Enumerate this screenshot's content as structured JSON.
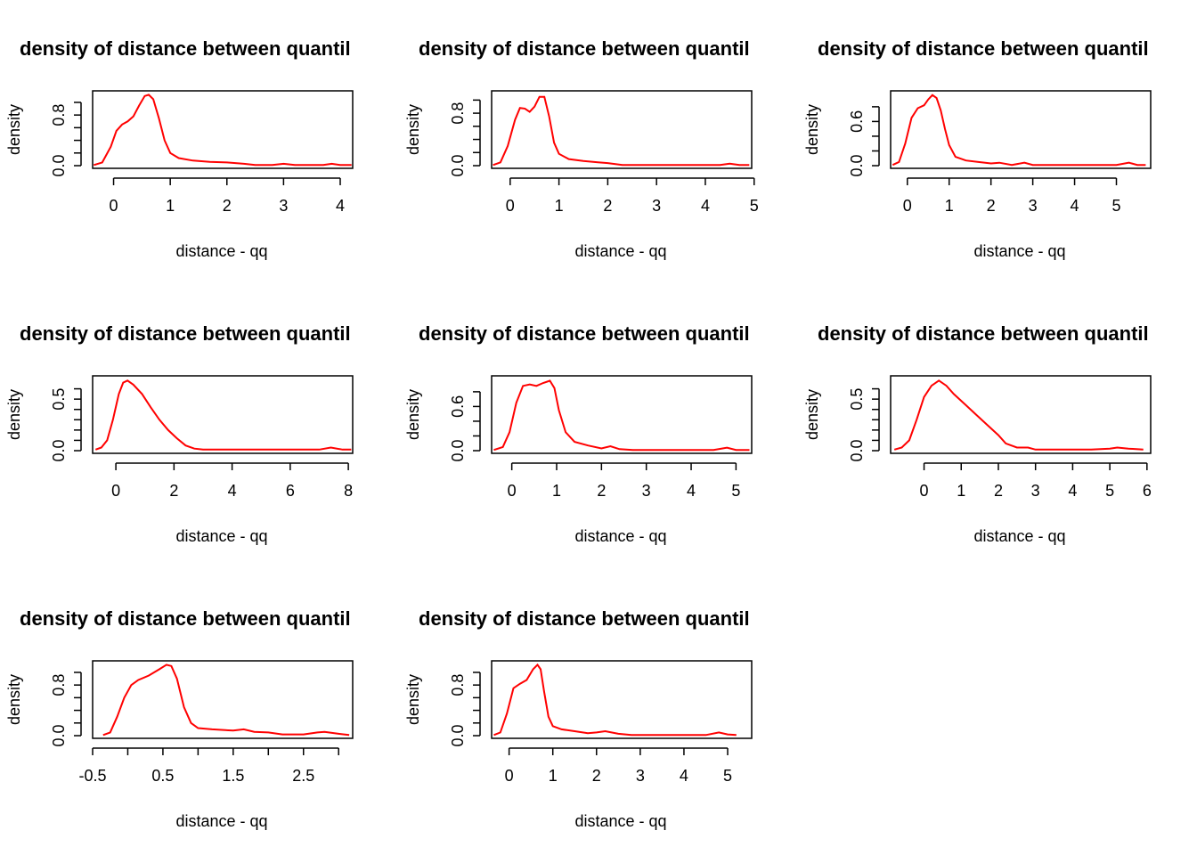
{
  "colors": {
    "curve": "#ff0000"
  },
  "chart_data": [
    {
      "type": "line",
      "title": "density of distance between quantil",
      "xlabel": "distance - qq",
      "ylabel": "density",
      "xlim": [
        -0.37,
        4.22
      ],
      "ylim": [
        0,
        1.14
      ],
      "xticks": [
        0,
        1,
        2,
        3,
        4
      ],
      "xtick_labels": [
        "0",
        "1",
        "2",
        "3",
        "4"
      ],
      "yticks": [
        0.0,
        0.2,
        0.4,
        0.6,
        0.8,
        1.0
      ],
      "ytick_labels": [
        "0.0",
        "",
        "",
        "",
        "0.8",
        ""
      ],
      "series": [
        {
          "x": [
            -0.35,
            -0.2,
            -0.05,
            0.05,
            0.15,
            0.25,
            0.35,
            0.45,
            0.55,
            0.62,
            0.7,
            0.8,
            0.9,
            1.0,
            1.15,
            1.4,
            1.7,
            2.0,
            2.3,
            2.5,
            2.8,
            3.0,
            3.2,
            3.5,
            3.7,
            3.85,
            4.0,
            4.2
          ],
          "y": [
            0.01,
            0.05,
            0.3,
            0.55,
            0.65,
            0.7,
            0.78,
            0.95,
            1.1,
            1.12,
            1.05,
            0.75,
            0.4,
            0.2,
            0.12,
            0.08,
            0.06,
            0.05,
            0.03,
            0.01,
            0.01,
            0.03,
            0.01,
            0.01,
            0.01,
            0.03,
            0.01,
            0.01
          ]
        }
      ]
    },
    {
      "type": "line",
      "title": "density of distance between quantil",
      "xlabel": "distance - qq",
      "ylabel": "density",
      "xlim": [
        -0.38,
        4.95
      ],
      "ylim": [
        0,
        1.1
      ],
      "xticks": [
        0,
        1,
        2,
        3,
        4,
        5
      ],
      "xtick_labels": [
        "0",
        "1",
        "2",
        "3",
        "4",
        "5"
      ],
      "yticks": [
        0.0,
        0.2,
        0.4,
        0.6,
        0.8,
        1.0
      ],
      "ytick_labels": [
        "0.0",
        "",
        "",
        "",
        "0.8",
        ""
      ],
      "series": [
        {
          "x": [
            -0.35,
            -0.2,
            -0.05,
            0.1,
            0.2,
            0.3,
            0.4,
            0.5,
            0.6,
            0.7,
            0.8,
            0.9,
            1.0,
            1.2,
            1.5,
            1.8,
            2.0,
            2.3,
            2.7,
            3.0,
            3.5,
            4.0,
            4.3,
            4.5,
            4.7,
            4.9
          ],
          "y": [
            0.01,
            0.05,
            0.3,
            0.7,
            0.88,
            0.87,
            0.82,
            0.9,
            1.05,
            1.05,
            0.75,
            0.35,
            0.18,
            0.1,
            0.07,
            0.05,
            0.04,
            0.01,
            0.01,
            0.01,
            0.01,
            0.01,
            0.01,
            0.03,
            0.01,
            0.01
          ]
        }
      ]
    },
    {
      "type": "line",
      "title": "density of distance between quantil",
      "xlabel": "distance - qq",
      "ylabel": "density",
      "xlim": [
        -0.4,
        5.82
      ],
      "ylim": [
        0,
        0.98
      ],
      "xticks": [
        0,
        1,
        2,
        3,
        4,
        5
      ],
      "xtick_labels": [
        "0",
        "1",
        "2",
        "3",
        "4",
        "5"
      ],
      "yticks": [
        0.0,
        0.2,
        0.4,
        0.6,
        0.8
      ],
      "ytick_labels": [
        "0.0",
        "",
        "",
        "0.6",
        ""
      ],
      "series": [
        {
          "x": [
            -0.35,
            -0.2,
            -0.05,
            0.1,
            0.25,
            0.4,
            0.5,
            0.6,
            0.7,
            0.8,
            0.9,
            1.0,
            1.15,
            1.4,
            1.7,
            2.0,
            2.2,
            2.5,
            2.8,
            3.0,
            3.5,
            4.0,
            4.5,
            5.0,
            5.3,
            5.5,
            5.7
          ],
          "y": [
            0.01,
            0.05,
            0.3,
            0.65,
            0.78,
            0.82,
            0.9,
            0.96,
            0.92,
            0.75,
            0.5,
            0.28,
            0.12,
            0.07,
            0.05,
            0.03,
            0.04,
            0.01,
            0.04,
            0.01,
            0.01,
            0.01,
            0.01,
            0.01,
            0.04,
            0.01,
            0.01
          ]
        }
      ]
    },
    {
      "type": "line",
      "title": "density of distance between quantil",
      "xlabel": "distance - qq",
      "ylabel": "density",
      "xlim": [
        -0.8,
        8.15
      ],
      "ylim": [
        0,
        0.7
      ],
      "xticks": [
        0,
        2,
        4,
        6,
        8
      ],
      "xtick_labels": [
        "0",
        "2",
        "4",
        "6",
        "8"
      ],
      "yticks": [
        0.0,
        0.1,
        0.2,
        0.3,
        0.4,
        0.5,
        0.6
      ],
      "ytick_labels": [
        "0.0",
        "",
        "",
        "",
        "",
        "0.5",
        ""
      ],
      "series": [
        {
          "x": [
            -0.7,
            -0.5,
            -0.3,
            -0.1,
            0.1,
            0.25,
            0.4,
            0.6,
            0.9,
            1.2,
            1.5,
            1.8,
            2.1,
            2.4,
            2.7,
            3.0,
            4.0,
            5.0,
            6.0,
            7.0,
            7.4,
            7.8,
            8.1
          ],
          "y": [
            0.01,
            0.03,
            0.1,
            0.3,
            0.55,
            0.66,
            0.68,
            0.64,
            0.55,
            0.42,
            0.3,
            0.2,
            0.12,
            0.05,
            0.02,
            0.01,
            0.01,
            0.01,
            0.01,
            0.01,
            0.03,
            0.01,
            0.01
          ]
        }
      ]
    },
    {
      "type": "line",
      "title": "density of distance between quantil",
      "xlabel": "distance - qq",
      "ylabel": "density",
      "xlim": [
        -0.45,
        5.35
      ],
      "ylim": [
        0,
        0.98
      ],
      "xticks": [
        0,
        1,
        2,
        3,
        4,
        5
      ],
      "xtick_labels": [
        "0",
        "1",
        "2",
        "3",
        "4",
        "5"
      ],
      "yticks": [
        0.0,
        0.2,
        0.4,
        0.6,
        0.8
      ],
      "ytick_labels": [
        "0.0",
        "",
        "",
        "0.6",
        ""
      ],
      "series": [
        {
          "x": [
            -0.4,
            -0.2,
            -0.05,
            0.1,
            0.25,
            0.4,
            0.55,
            0.7,
            0.85,
            0.95,
            1.05,
            1.2,
            1.4,
            1.7,
            2.0,
            2.2,
            2.4,
            2.7,
            3.0,
            3.5,
            4.0,
            4.5,
            4.8,
            5.0,
            5.3
          ],
          "y": [
            0.01,
            0.05,
            0.25,
            0.65,
            0.88,
            0.9,
            0.88,
            0.92,
            0.95,
            0.85,
            0.55,
            0.25,
            0.12,
            0.07,
            0.03,
            0.06,
            0.02,
            0.01,
            0.01,
            0.01,
            0.01,
            0.01,
            0.04,
            0.01,
            0.01
          ]
        }
      ]
    },
    {
      "type": "line",
      "title": "density of distance between quantil",
      "xlabel": "distance - qq",
      "ylabel": "density",
      "xlim": [
        -0.9,
        6.1
      ],
      "ylim": [
        0,
        0.7
      ],
      "xticks": [
        0,
        1,
        2,
        3,
        4,
        5,
        6
      ],
      "xtick_labels": [
        "0",
        "1",
        "2",
        "3",
        "4",
        "5",
        "6"
      ],
      "yticks": [
        0.0,
        0.1,
        0.2,
        0.3,
        0.4,
        0.5,
        0.6
      ],
      "ytick_labels": [
        "0.0",
        "",
        "",
        "",
        "",
        "0.5",
        ""
      ],
      "series": [
        {
          "x": [
            -0.8,
            -0.6,
            -0.4,
            -0.2,
            0.0,
            0.2,
            0.4,
            0.6,
            0.8,
            1.1,
            1.4,
            1.7,
            2.0,
            2.2,
            2.5,
            2.8,
            3.0,
            3.5,
            4.0,
            4.5,
            5.0,
            5.2,
            5.5,
            5.9
          ],
          "y": [
            0.01,
            0.03,
            0.1,
            0.3,
            0.52,
            0.63,
            0.68,
            0.63,
            0.55,
            0.45,
            0.35,
            0.25,
            0.15,
            0.07,
            0.03,
            0.03,
            0.01,
            0.01,
            0.01,
            0.01,
            0.02,
            0.03,
            0.02,
            0.01
          ]
        }
      ]
    },
    {
      "type": "line",
      "title": "density of distance between quantil",
      "xlabel": "distance - qq",
      "ylabel": "density",
      "xlim": [
        -0.5,
        3.2
      ],
      "ylim": [
        0,
        1.14
      ],
      "xticks": [
        -0.5,
        0,
        0.5,
        1,
        1.5,
        2,
        2.5,
        3
      ],
      "xtick_labels": [
        "-0.5",
        "",
        "0.5",
        "",
        "1.5",
        "",
        "2.5",
        ""
      ],
      "yticks": [
        0.0,
        0.2,
        0.4,
        0.6,
        0.8,
        1.0
      ],
      "ytick_labels": [
        "0.0",
        "",
        "",
        "",
        "0.8",
        ""
      ],
      "series": [
        {
          "x": [
            -0.35,
            -0.25,
            -0.15,
            -0.05,
            0.05,
            0.15,
            0.3,
            0.45,
            0.55,
            0.62,
            0.7,
            0.8,
            0.9,
            1.0,
            1.2,
            1.5,
            1.65,
            1.8,
            2.0,
            2.2,
            2.5,
            2.7,
            2.8,
            3.0,
            3.15
          ],
          "y": [
            0.01,
            0.05,
            0.3,
            0.6,
            0.8,
            0.88,
            0.95,
            1.05,
            1.12,
            1.1,
            0.9,
            0.45,
            0.2,
            0.12,
            0.1,
            0.08,
            0.1,
            0.06,
            0.05,
            0.02,
            0.02,
            0.05,
            0.06,
            0.03,
            0.01
          ]
        }
      ]
    },
    {
      "type": "line",
      "title": "density of distance between quantil",
      "xlabel": "distance - qq",
      "ylabel": "density",
      "xlim": [
        -0.4,
        5.55
      ],
      "ylim": [
        0,
        1.14
      ],
      "xticks": [
        0,
        1,
        2,
        3,
        4,
        5
      ],
      "xtick_labels": [
        "0",
        "1",
        "2",
        "3",
        "4",
        "5"
      ],
      "yticks": [
        0.0,
        0.2,
        0.4,
        0.6,
        0.8,
        1.0
      ],
      "ytick_labels": [
        "0.0",
        "",
        "",
        "",
        "0.8",
        ""
      ],
      "series": [
        {
          "x": [
            -0.35,
            -0.2,
            -0.05,
            0.1,
            0.25,
            0.4,
            0.55,
            0.65,
            0.72,
            0.8,
            0.9,
            1.0,
            1.2,
            1.5,
            1.8,
            2.0,
            2.2,
            2.5,
            2.8,
            3.0,
            3.5,
            4.0,
            4.5,
            4.8,
            5.0,
            5.2
          ],
          "y": [
            0.01,
            0.05,
            0.35,
            0.75,
            0.82,
            0.88,
            1.05,
            1.12,
            1.05,
            0.7,
            0.3,
            0.15,
            0.1,
            0.07,
            0.04,
            0.05,
            0.07,
            0.03,
            0.01,
            0.01,
            0.01,
            0.01,
            0.01,
            0.05,
            0.02,
            0.01
          ]
        }
      ]
    }
  ]
}
